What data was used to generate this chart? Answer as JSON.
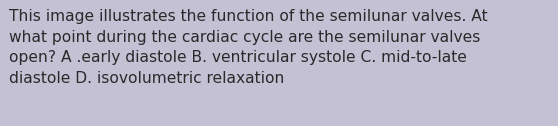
{
  "text": "This image illustrates the function of the semilunar valves. At\nwhat point during the cardiac cycle are the semilunar valves\nopen? A .early diastole B. ventricular systole C. mid-to-late\ndiastole D. isovolumetric relaxation",
  "background_color": "#c5c1d5",
  "text_color": "#2a2a2a",
  "font_size": 11.2,
  "fig_width": 5.58,
  "fig_height": 1.26,
  "dpi": 100
}
